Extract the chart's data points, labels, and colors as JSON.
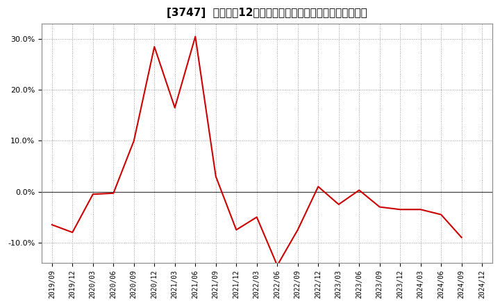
{
  "title": "[3747]  売上高の12か月移動合計の対前年同期増減率の推移",
  "line_color": "#cc0000",
  "background_color": "#ffffff",
  "plot_bg_color": "#ffffff",
  "grid_color": "#999999",
  "zero_line_color": "#444444",
  "dates": [
    "2019/09",
    "2019/12",
    "2020/03",
    "2020/06",
    "2020/09",
    "2020/12",
    "2021/03",
    "2021/06",
    "2021/09",
    "2021/12",
    "2022/03",
    "2022/06",
    "2022/09",
    "2022/12",
    "2023/03",
    "2023/06",
    "2023/09",
    "2023/12",
    "2024/03",
    "2024/06",
    "2024/09",
    "2024/12"
  ],
  "values": [
    -6.5,
    -8.0,
    -0.5,
    -0.3,
    10.0,
    28.5,
    16.5,
    30.5,
    3.0,
    -7.5,
    -5.0,
    -14.5,
    -7.5,
    1.0,
    -2.5,
    0.3,
    -3.0,
    -3.5,
    -3.5,
    -4.5,
    -9.0,
    null
  ],
  "ylim": [
    -14,
    33
  ],
  "yticks": [
    -10.0,
    0.0,
    10.0,
    20.0,
    30.0
  ],
  "title_fontsize": 11,
  "tick_fontsize": 8,
  "xtick_fontsize": 7
}
